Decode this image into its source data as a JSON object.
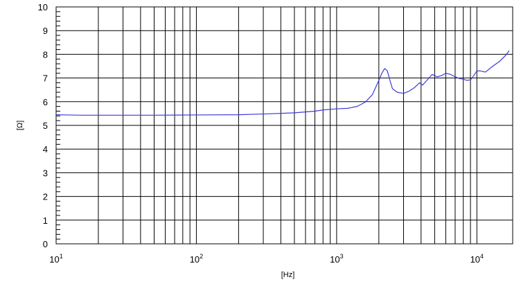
{
  "chart_data": {
    "type": "line",
    "title": "",
    "xlabel": "[Hz]",
    "ylabel": "[Ω]",
    "xscale": "log",
    "xlim": [
      10,
      18000
    ],
    "ylim": [
      0,
      10
    ],
    "grid": true,
    "legend": "none",
    "colors": {
      "series": "#3b3bd6",
      "grid": "#000000",
      "axis": "#000000"
    },
    "yticks": [
      "0",
      "1",
      "2",
      "3",
      "4",
      "5",
      "6",
      "7",
      "8",
      "9",
      "10"
    ],
    "xticks": [
      {
        "value": 10,
        "base": "10",
        "exp": "1"
      },
      {
        "value": 100,
        "base": "10",
        "exp": "2"
      },
      {
        "value": 1000,
        "base": "10",
        "exp": "3"
      },
      {
        "value": 10000,
        "base": "10",
        "exp": "4"
      }
    ],
    "series": [
      {
        "x": [
          10,
          12,
          15,
          20,
          30,
          50,
          100,
          200,
          300,
          500,
          700,
          800,
          1000,
          1200,
          1400,
          1600,
          1800,
          2000,
          2100,
          2200,
          2300,
          2400,
          2500,
          2700,
          3000,
          3300,
          3600,
          3900,
          4100,
          4400,
          4800,
          5200,
          5600,
          6000,
          6500,
          7000,
          7500,
          8000,
          8500,
          9000,
          9500,
          10000,
          10500,
          11500,
          13000,
          14500,
          16000,
          17000
        ],
        "y": [
          5.45,
          5.44,
          5.43,
          5.43,
          5.43,
          5.43,
          5.44,
          5.45,
          5.48,
          5.53,
          5.6,
          5.65,
          5.7,
          5.72,
          5.8,
          5.98,
          6.3,
          6.9,
          7.2,
          7.4,
          7.3,
          6.9,
          6.55,
          6.4,
          6.35,
          6.45,
          6.6,
          6.8,
          6.7,
          6.9,
          7.15,
          7.05,
          7.1,
          7.2,
          7.15,
          7.05,
          6.98,
          6.95,
          6.9,
          6.92,
          7.1,
          7.3,
          7.3,
          7.25,
          7.5,
          7.7,
          7.95,
          8.15
        ]
      }
    ]
  }
}
